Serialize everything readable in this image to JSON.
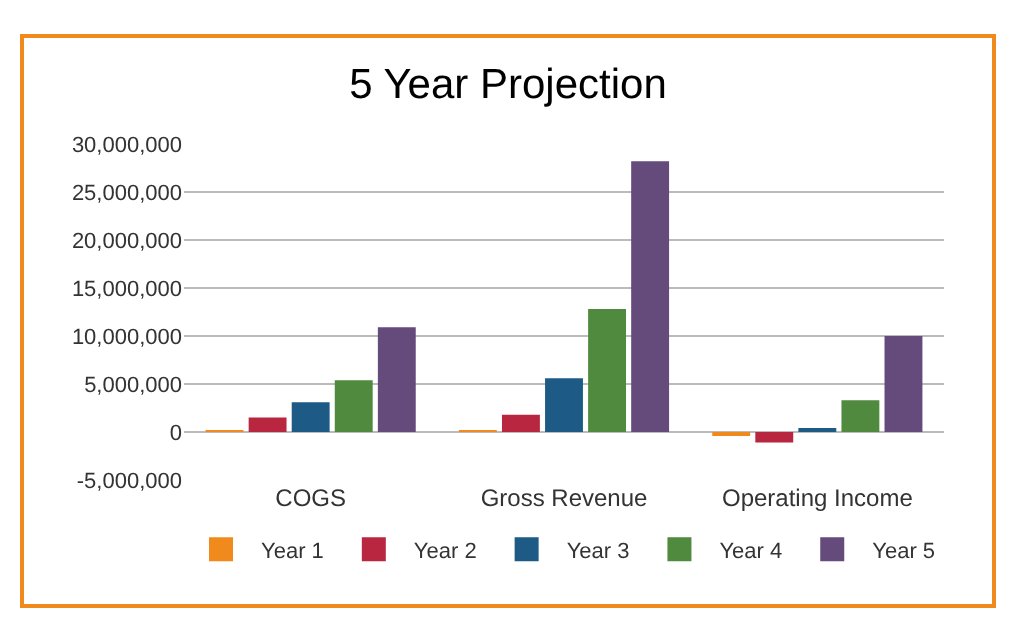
{
  "chart_data": {
    "type": "bar",
    "title": "5 Year Projection",
    "categories": [
      "COGS",
      "Gross Revenue",
      "Operating Income"
    ],
    "series": [
      {
        "name": "Year 1",
        "color": "#f08a1c",
        "values": [
          150000,
          150000,
          -400000
        ]
      },
      {
        "name": "Year 2",
        "color": "#b8273f",
        "values": [
          1500000,
          1800000,
          -1100000
        ]
      },
      {
        "name": "Year 3",
        "color": "#1d5a85",
        "values": [
          3100000,
          5600000,
          250000
        ]
      },
      {
        "name": "Year 4",
        "color": "#4f8a3e",
        "values": [
          5400000,
          12800000,
          3300000
        ]
      },
      {
        "name": "Year 5",
        "color": "#654a7c",
        "values": [
          10900000,
          28200000,
          10000000
        ]
      }
    ],
    "ylim": [
      -5000000,
      30000000
    ],
    "yticks": [
      {
        "value": -5000000,
        "label": "-5,000,000"
      },
      {
        "value": 0,
        "label": "0"
      },
      {
        "value": 5000000,
        "label": "5,000,000"
      },
      {
        "value": 10000000,
        "label": "10,000,000"
      },
      {
        "value": 15000000,
        "label": "15,000,000"
      },
      {
        "value": 20000000,
        "label": "20,000,000"
      },
      {
        "value": 25000000,
        "label": "25,000,000"
      },
      {
        "value": 30000000,
        "label": "30,000,000"
      }
    ],
    "grid": "y",
    "legend": "bottom"
  }
}
